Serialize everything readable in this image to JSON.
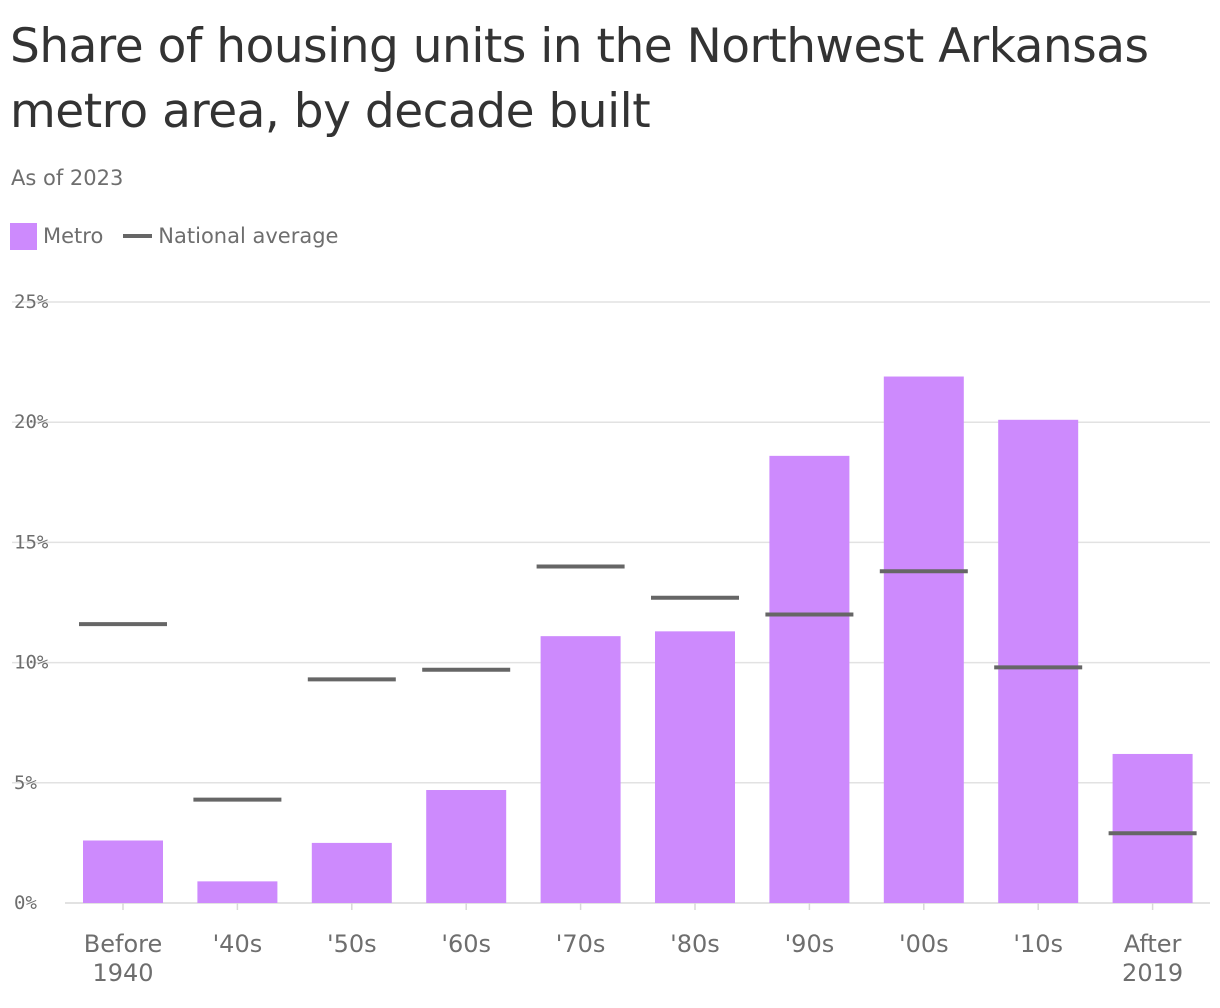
{
  "title": "Share of housing units in the Northwest Arkansas metro area, by decade built",
  "subtitle": "As of 2023",
  "legend": {
    "metro_label": "Metro",
    "national_label": "National average"
  },
  "colors": {
    "metro": "#cd8afd",
    "national": "#666666",
    "grid": "#e2e2e2",
    "axis": "#d9d9d9"
  },
  "chart_data": {
    "type": "bar",
    "categories": [
      [
        "Before",
        "1940"
      ],
      [
        "'40s"
      ],
      [
        "'50s"
      ],
      [
        "'60s"
      ],
      [
        "'70s"
      ],
      [
        "'80s"
      ],
      [
        "'90s"
      ],
      [
        "'00s"
      ],
      [
        "'10s"
      ],
      [
        "After",
        "2019"
      ]
    ],
    "series": [
      {
        "name": "Metro",
        "values": [
          2.6,
          0.9,
          2.5,
          4.7,
          11.1,
          11.3,
          18.6,
          21.9,
          20.1,
          6.2
        ]
      },
      {
        "name": "National average",
        "values": [
          11.6,
          4.3,
          9.3,
          9.7,
          14.0,
          12.7,
          12.0,
          13.8,
          9.8,
          2.9
        ]
      }
    ],
    "y_ticks": [
      0,
      5,
      10,
      15,
      20,
      25
    ],
    "y_tick_labels": [
      "0%",
      "5%",
      "10%",
      "15%",
      "20%",
      "25%"
    ],
    "ylim": [
      0,
      25
    ],
    "grid": true,
    "legend_position": "top-left"
  }
}
